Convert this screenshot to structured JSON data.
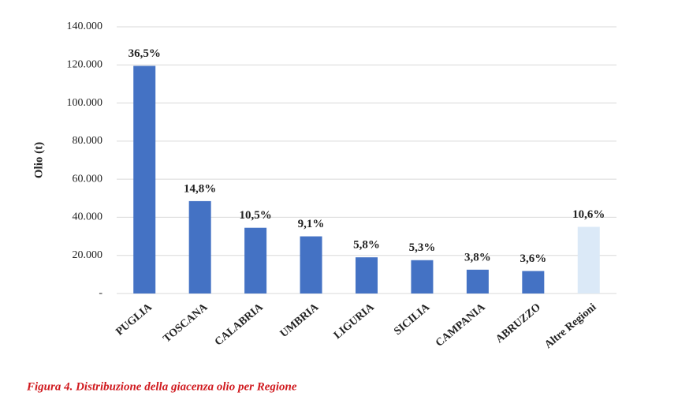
{
  "chart_data": {
    "type": "bar",
    "y_label": "Olio (t)",
    "caption": "Figura 4. Distribuzione della giacenza olio per Regione",
    "categories": [
      "PUGLIA",
      "TOSCANA",
      "CALABRIA",
      "UMBRIA",
      "LIGURIA",
      "SICILIA",
      "CAMPANIA",
      "ABRUZZO",
      "Altre Regioni"
    ],
    "values": [
      119500,
      48500,
      34500,
      30000,
      19000,
      17500,
      12500,
      11800,
      35000
    ],
    "percent_labels": [
      "36,5%",
      "14,8%",
      "10,5%",
      "9,1%",
      "5,8%",
      "5,3%",
      "3,8%",
      "3,6%",
      "10,6%"
    ],
    "colors": [
      "#4472c4",
      "#4472c4",
      "#4472c4",
      "#4472c4",
      "#4472c4",
      "#4472c4",
      "#4472c4",
      "#4472c4",
      "#dbe9f7"
    ],
    "ylim": [
      0,
      140000
    ],
    "yticks": [
      {
        "value": 0,
        "label": "-"
      },
      {
        "value": 20000,
        "label": "20.000"
      },
      {
        "value": 40000,
        "label": "40.000"
      },
      {
        "value": 60000,
        "label": "60.000"
      },
      {
        "value": 80000,
        "label": "80.000"
      },
      {
        "value": 100000,
        "label": "100.000"
      },
      {
        "value": 120000,
        "label": "120.000"
      },
      {
        "value": 140000,
        "label": "140.000"
      }
    ],
    "grid": true
  }
}
